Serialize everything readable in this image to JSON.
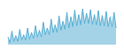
{
  "chart_data": {
    "type": "area",
    "values": [
      3.5,
      2.2,
      4.8,
      2.5,
      3.8,
      2.5,
      5.2,
      2.8,
      4.0,
      2.8,
      5.5,
      3.0,
      4.5,
      3.2,
      6.0,
      3.5,
      5.0,
      3.5,
      6.8,
      4.0,
      5.5,
      4.0,
      7.5,
      4.5,
      6.2,
      4.5,
      8.2,
      5.0,
      7.0,
      5.2,
      9.0,
      5.5,
      8.0,
      5.8,
      9.5,
      6.0,
      8.5,
      6.2,
      9.8,
      6.5,
      8.8,
      6.5,
      9.6,
      6.3,
      8.5,
      6.2,
      9.4,
      6.0,
      8.3,
      6.0,
      9.2,
      5.8,
      8.0,
      5.8,
      9.0,
      5.5
    ],
    "baseline": 1.8,
    "color": "#5aafd4",
    "ylim": [
      1,
      10
    ],
    "tick_labels": false
  }
}
